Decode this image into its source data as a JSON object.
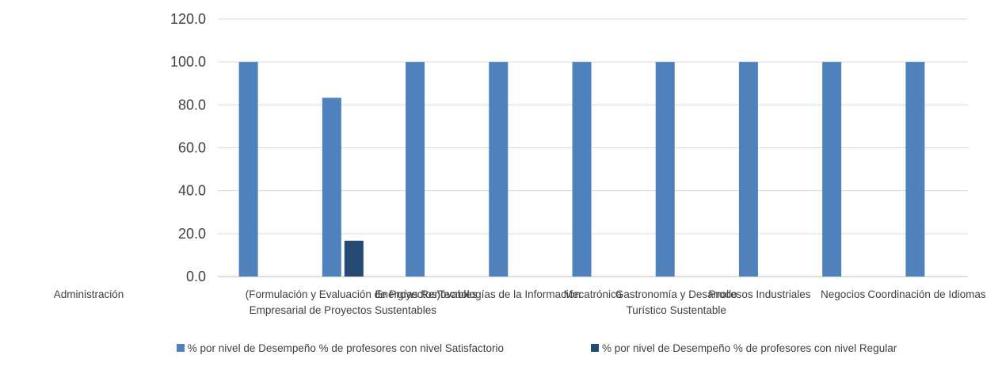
{
  "chart_data": {
    "type": "bar",
    "categories": [
      "Administración",
      "(Formulación y Evaluación de Proyectos) Empresarial de Proyectos Sustentables",
      "Energías Renovables",
      "Tecnologías de la Información",
      "Mecatrónica",
      "Gastronomía y Desarrollo Turístico Sustentable",
      "Procesos Industriales",
      "Negocios",
      "Coordinación de Idiomas"
    ],
    "category_labels": [
      [
        "Administración"
      ],
      [
        "(Formulación y Evaluación de Proyectos)",
        "Empresarial de Proyectos Sustentables"
      ],
      [
        "Energías Renovables"
      ],
      [
        "Tecnologías de la Información"
      ],
      [
        "Mecatrónica"
      ],
      [
        "Gastronomía y Desarrollo",
        "Turístico Sustentable"
      ],
      [
        "Procesos Industriales"
      ],
      [
        "Negocios"
      ],
      [
        "Coordinación de Idiomas"
      ]
    ],
    "series": [
      {
        "name": "% por nivel de Desempeño  % de profesores con nivel Satisfactorio",
        "color": "#4F81BD",
        "values": [
          100,
          83.3,
          100,
          100,
          100,
          100,
          100,
          100,
          100
        ]
      },
      {
        "name": "% por nivel de Desempeño  % de profesores con nivel Regular",
        "color": "#254A73",
        "values": [
          0,
          16.7,
          0,
          0,
          0,
          0,
          0,
          0,
          0
        ]
      }
    ],
    "ylim": [
      0,
      120
    ],
    "yticks": [
      "0.0",
      "20.0",
      "40.0",
      "60.0",
      "80.0",
      "100.0",
      "120.0"
    ],
    "grid": true,
    "legend_position": "bottom"
  }
}
